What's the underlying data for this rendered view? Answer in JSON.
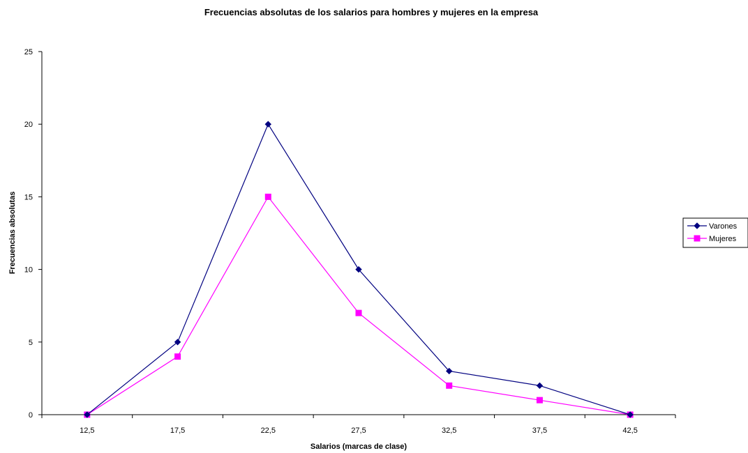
{
  "chart_data": {
    "type": "line",
    "title": "Frecuencias absolutas de los salarios para hombres y mujeres en la empresa",
    "xlabel": "Salarios (marcas de clase)",
    "ylabel": "Frecuencias absolutas",
    "categories": [
      "12,5",
      "17,5",
      "22,5",
      "27,5",
      "32,5",
      "37,5",
      "42,5"
    ],
    "yticks": [
      "0",
      "5",
      "10",
      "15",
      "20",
      "25"
    ],
    "ylim": [
      0,
      25
    ],
    "grid": false,
    "legend_position": "right",
    "series": [
      {
        "name": "Varones",
        "color": "#000080",
        "marker": "diamond",
        "values": [
          0,
          5,
          20,
          10,
          3,
          2,
          0
        ]
      },
      {
        "name": "Mujeres",
        "color": "#FF00FF",
        "marker": "square",
        "values": [
          0,
          4,
          15,
          7,
          2,
          1,
          0
        ]
      }
    ]
  }
}
